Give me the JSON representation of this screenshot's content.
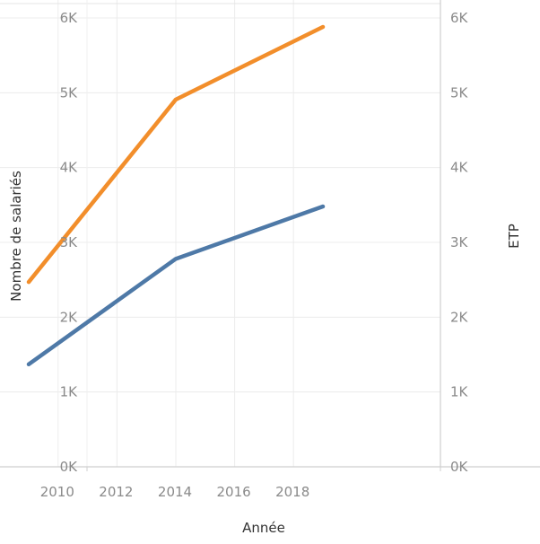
{
  "chart_data": {
    "type": "line",
    "xlabel": "Année",
    "ylabel_left": "Nombre de salariés",
    "ylabel_right": "ETP",
    "x_ticks": [
      "2010",
      "2012",
      "2014",
      "2016",
      "2018"
    ],
    "x_tick_values": [
      2010,
      2012,
      2014,
      2016,
      2018
    ],
    "y_ticks": [
      "0K",
      "1K",
      "2K",
      "3K",
      "4K",
      "5K",
      "6K"
    ],
    "y_tick_values": [
      0,
      1000,
      2000,
      3000,
      4000,
      5000,
      6000
    ],
    "xlim": [
      2009,
      2020
    ],
    "ylim": [
      0,
      6000
    ],
    "grid": true,
    "series": [
      {
        "color": "#f28e2b",
        "x": [
          2009,
          2014,
          2019
        ],
        "values": [
          2470,
          4910,
          5880
        ]
      },
      {
        "color": "#4e79a7",
        "x": [
          2009,
          2014,
          2019
        ],
        "values": [
          1370,
          2780,
          3480
        ]
      }
    ]
  }
}
